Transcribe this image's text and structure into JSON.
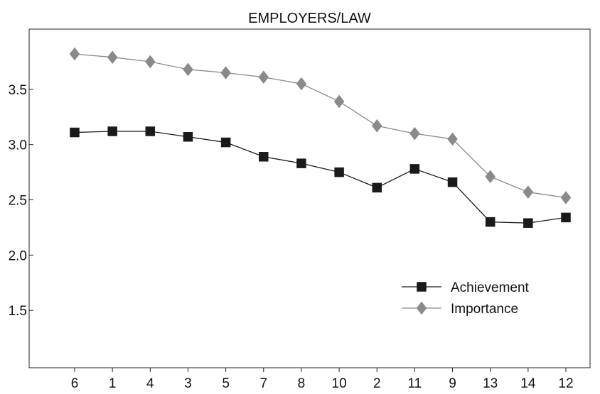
{
  "chart_data": {
    "type": "line",
    "title": "EMPLOYERS/LAW",
    "xlabel": "",
    "ylabel": "",
    "categories": [
      "6",
      "1",
      "4",
      "3",
      "5",
      "7",
      "8",
      "10",
      "2",
      "11",
      "9",
      "13",
      "14",
      "12"
    ],
    "ylim": [
      1.0,
      4.0
    ],
    "yticks": [
      "1.5",
      "2.0",
      "2.5",
      "3.0",
      "3.5"
    ],
    "grid": false,
    "legend_position": "center-right",
    "series": [
      {
        "name": "Achievement",
        "marker": "square",
        "color": "#1a1a1a",
        "values": [
          3.11,
          3.12,
          3.12,
          3.07,
          3.02,
          2.89,
          2.83,
          2.75,
          2.61,
          2.78,
          2.66,
          2.3,
          2.29,
          2.34
        ]
      },
      {
        "name": "Importance",
        "marker": "diamond",
        "color": "#8a8a8a",
        "values": [
          3.82,
          3.79,
          3.75,
          3.68,
          3.65,
          3.61,
          3.55,
          3.39,
          3.17,
          3.1,
          3.05,
          2.71,
          2.57,
          2.52
        ]
      }
    ]
  }
}
